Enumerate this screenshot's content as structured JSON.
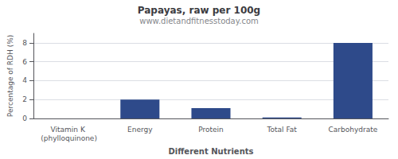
{
  "chart_data": {
    "type": "bar",
    "title": "Papayas, raw per 100g",
    "subtitle": "www.dietandfitnesstoday.com",
    "xlabel": "Different Nutrients",
    "ylabel": "Percentage of RDH (%)",
    "categories": [
      "Vitamin K (phylloquinone)",
      "Energy",
      "Protein",
      "Total Fat",
      "Carbohydrate"
    ],
    "values": [
      0.0,
      2.0,
      1.1,
      0.1,
      8.0
    ],
    "color": "#2e4a8a",
    "ylim": [
      0,
      9
    ],
    "yticks": [
      0,
      2,
      4,
      6,
      8
    ],
    "grid": true
  }
}
